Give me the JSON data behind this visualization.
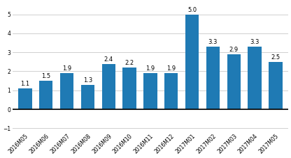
{
  "categories": [
    "2016M05",
    "2016M06",
    "2016M07",
    "2016M08",
    "2016M09",
    "2016M10",
    "2016M11",
    "2016M12",
    "2017M01",
    "2017M02",
    "2017M03",
    "2017M04",
    "2017M05"
  ],
  "values": [
    1.1,
    1.5,
    1.9,
    1.3,
    2.4,
    2.2,
    1.9,
    1.9,
    5.0,
    3.3,
    2.9,
    3.3,
    2.5
  ],
  "bar_color": "#1f7ab4",
  "ylim": [
    -1.2,
    5.6
  ],
  "yticks": [
    -1,
    0,
    1,
    2,
    3,
    4,
    5
  ],
  "background_color": "#ffffff",
  "grid_color": "#d0d0d0",
  "label_fontsize": 6.0,
  "tick_fontsize": 5.5,
  "bar_width": 0.65
}
